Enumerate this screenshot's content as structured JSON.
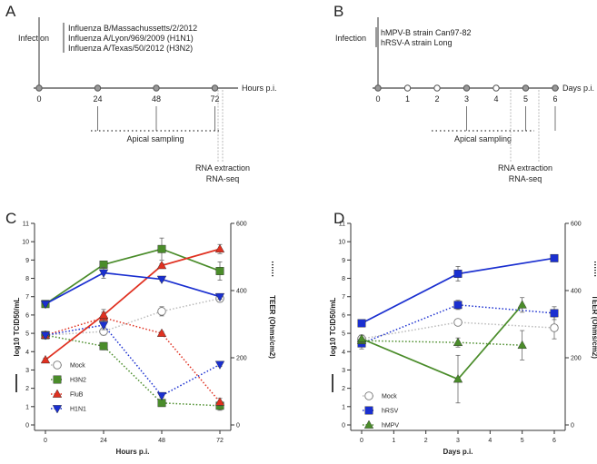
{
  "panels": {
    "A": {
      "letter": "A",
      "infection_label": "Infection",
      "strains": [
        "Influenza B/Massachussetts/2/2012",
        "Influenza A/Lyon/969/2009 (H1N1)",
        "Influenza A/Texas/50/2012 (H3N2)"
      ],
      "timepoints": [
        "0",
        "24",
        "48",
        "72"
      ],
      "axis_label": "Hours p.i.",
      "sampling_label": "Apical sampling",
      "rna_label_1": "RNA extraction",
      "rna_label_2": "RNA-seq"
    },
    "B": {
      "letter": "B",
      "infection_label": "Infection",
      "strains": [
        "hMPV-B strain Can97-82",
        "hRSV-A strain Long"
      ],
      "timepoints": [
        "0",
        "1",
        "2",
        "3",
        "4",
        "5",
        "6"
      ],
      "axis_label": "Days p.i.",
      "sampling_label": "Apical sampling",
      "rna_label_1": "RNA extraction",
      "rna_label_2": "RNA-seq"
    },
    "C": {
      "letter": "C"
    },
    "D": {
      "letter": "D"
    }
  },
  "colors": {
    "mock": "#bbbbbb",
    "h3n2": "#4a8c2a",
    "flub": "#e03020",
    "h1n1": "#1a2fd0",
    "hrsv": "#1a2fd0",
    "hmpv": "#4a8c2a",
    "axis": "#333333"
  },
  "chart_data": [
    {
      "panel": "C",
      "type": "line",
      "xlabel": "Hours p.i.",
      "ylabel_left": "log10 TCID50/mL",
      "ylabel_right": "TEER (Ohms/cm2)",
      "x_ticks": [
        0,
        24,
        48,
        72
      ],
      "y_left_ticks": [
        0,
        1,
        2,
        3,
        4,
        5,
        6,
        7,
        8,
        9,
        10,
        11
      ],
      "y_right_ticks": [
        0,
        200,
        400,
        600
      ],
      "xlim": [
        0,
        72
      ],
      "ylim_left": [
        0,
        11
      ],
      "ylim_right": [
        0,
        600
      ],
      "series": [
        {
          "name": "Mock",
          "axis": "left",
          "style": "dotted",
          "marker": "circle",
          "color": "mock",
          "x": [
            0,
            24,
            48,
            72
          ],
          "y": [
            4.9,
            5.1,
            6.2,
            6.9
          ],
          "err": [
            0.15,
            0.2,
            0.25,
            0.2
          ]
        },
        {
          "name": "H3N2",
          "axis": "left",
          "style": "dotted",
          "marker": "square",
          "color": "h3n2",
          "x": [
            0,
            24,
            48,
            72
          ],
          "y": [
            4.9,
            4.3,
            1.2,
            1.05
          ],
          "err": [
            0.1,
            0.2,
            0.15,
            0.25
          ]
        },
        {
          "name": "FluB",
          "axis": "left",
          "style": "dotted",
          "marker": "triangle-up",
          "color": "flub",
          "x": [
            0,
            24,
            48,
            72
          ],
          "y": [
            4.9,
            5.85,
            5.0,
            1.25
          ],
          "err": [
            0.1,
            0.3,
            0.1,
            0.2
          ]
        },
        {
          "name": "H1N1",
          "axis": "left",
          "style": "dotted",
          "marker": "triangle-down",
          "color": "h1n1",
          "x": [
            0,
            24,
            48,
            72
          ],
          "y": [
            4.9,
            5.45,
            1.6,
            3.3
          ],
          "err": [
            0.1,
            0.25,
            0.1,
            0.1
          ]
        },
        {
          "name": "H3N2 TEER",
          "axis": "left",
          "style": "solid",
          "marker": "square",
          "color": "h3n2",
          "x": [
            0,
            24,
            48,
            72
          ],
          "y": [
            6.6,
            8.75,
            9.6,
            8.4
          ],
          "err": [
            0.1,
            0.1,
            0.6,
            0.5
          ]
        },
        {
          "name": "FluB TEER",
          "axis": "left",
          "style": "solid",
          "marker": "triangle-up",
          "color": "flub",
          "x": [
            0,
            24,
            48,
            72
          ],
          "y": [
            3.55,
            6.0,
            8.7,
            9.6
          ],
          "err": [
            0.1,
            0.3,
            0.1,
            0.25
          ]
        },
        {
          "name": "H1N1 TEER",
          "axis": "left",
          "style": "solid",
          "marker": "triangle-down",
          "color": "h1n1",
          "x": [
            0,
            24,
            48,
            72
          ],
          "y": [
            6.6,
            8.3,
            7.95,
            7.0
          ],
          "err": [
            0.1,
            0.3,
            0.1,
            0.15
          ]
        }
      ],
      "legend": [
        "Mock",
        "H3N2",
        "FluB",
        "H1N1"
      ],
      "legend_position": "bottom-left"
    },
    {
      "panel": "D",
      "type": "line",
      "xlabel": "Days p.i.",
      "ylabel_left": "log10 TCID50/mL",
      "ylabel_right": "TEER (Ohms/cm2)",
      "x_ticks": [
        0,
        1,
        2,
        3,
        4,
        5,
        6
      ],
      "y_left_ticks": [
        0,
        1,
        2,
        3,
        4,
        5,
        6,
        7,
        8,
        9,
        10,
        11
      ],
      "y_right_ticks": [
        0,
        200,
        400,
        600
      ],
      "xlim": [
        0,
        6
      ],
      "ylim_left": [
        0,
        11
      ],
      "ylim_right": [
        0,
        600
      ],
      "series": [
        {
          "name": "Mock",
          "axis": "left",
          "style": "dotted",
          "marker": "circle",
          "color": "mock",
          "x": [
            0,
            3,
            6
          ],
          "y": [
            4.7,
            5.6,
            5.3
          ],
          "err": [
            0.2,
            0.1,
            0.6
          ]
        },
        {
          "name": "hRSV",
          "axis": "left",
          "style": "dotted",
          "marker": "square",
          "color": "hrsv",
          "x": [
            0,
            3,
            6
          ],
          "y": [
            4.45,
            6.55,
            6.1
          ],
          "err": [
            0.3,
            0.25,
            0.35
          ]
        },
        {
          "name": "hMPV",
          "axis": "left",
          "style": "dotted",
          "marker": "triangle-up",
          "color": "hmpv",
          "x": [
            0,
            3,
            5
          ],
          "y": [
            4.6,
            4.5,
            4.35
          ],
          "err": [
            0.15,
            0.25,
            0.8
          ]
        },
        {
          "name": "hRSV TEER",
          "axis": "left",
          "style": "solid",
          "marker": "square",
          "color": "hrsv",
          "x": [
            0,
            3,
            6
          ],
          "y": [
            5.55,
            8.25,
            9.1
          ],
          "err": [
            0.1,
            0.4,
            0.1
          ]
        },
        {
          "name": "hMPV TEER",
          "axis": "left",
          "style": "solid",
          "marker": "triangle-up",
          "color": "hmpv",
          "x": [
            0,
            3,
            5
          ],
          "y": [
            4.7,
            2.5,
            6.55
          ],
          "err": [
            0.2,
            1.3,
            0.4
          ]
        }
      ],
      "legend": [
        "Mock",
        "hRSV",
        "hMPV"
      ],
      "legend_position": "bottom-left"
    }
  ]
}
